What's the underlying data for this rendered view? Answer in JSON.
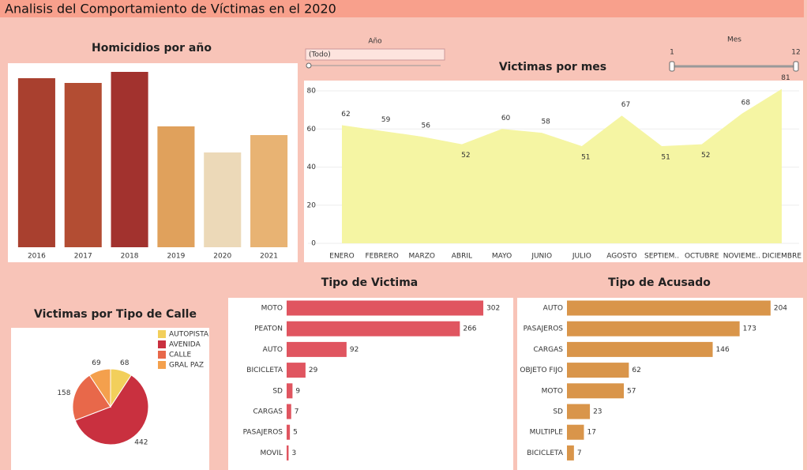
{
  "title": "Analisis del Comportamiento de Víctimas en el 2020",
  "filters": {
    "year": {
      "label": "Año",
      "value": "(Todo)"
    },
    "month": {
      "label": "Mes",
      "min": 1,
      "max": 12
    }
  },
  "chart_data": [
    {
      "type": "bar",
      "title": "Homicidios por año",
      "categories": [
        "2016",
        "2017",
        "2018",
        "2019",
        "2020",
        "2021"
      ],
      "values": [
        214,
        208,
        222,
        153,
        120,
        142
      ],
      "colors": [
        "#a9402f",
        "#b34d33",
        "#a2322e",
        "#e0a15c",
        "#ecd9b8",
        "#e8b373"
      ],
      "ylim": [
        0,
        230
      ]
    },
    {
      "type": "area",
      "title": "Victimas por mes",
      "categories": [
        "ENERO",
        "FEBRERO",
        "MARZO",
        "ABRIL",
        "MAYO",
        "JUNIO",
        "JULIO",
        "AGOSTO",
        "SEPTIEM..",
        "OCTUBRE",
        "NOVIEME..",
        "DICIEMBRE"
      ],
      "values": [
        62,
        59,
        56,
        52,
        60,
        58,
        51,
        67,
        51,
        52,
        68,
        81
      ],
      "color": "#f5f5a3",
      "ylim": [
        0,
        85
      ],
      "yticks": [
        0,
        20,
        40,
        60,
        80
      ],
      "grid": true
    },
    {
      "type": "pie",
      "title": "Victimas por Tipo de Calle",
      "categories": [
        "AUTOPISTA",
        "AVENIDA",
        "CALLE",
        "GRAL PAZ"
      ],
      "values": [
        68,
        442,
        158,
        69
      ],
      "colors": [
        "#f2cf5b",
        "#c9303f",
        "#e8684a",
        "#f4a04d"
      ]
    },
    {
      "type": "hbar",
      "title": "Tipo de Victima",
      "categories": [
        "MOTO",
        "PEATON",
        "AUTO",
        "BICICLETA",
        "SD",
        "CARGAS",
        "PASAJEROS",
        "MOVIL"
      ],
      "values": [
        302,
        266,
        92,
        29,
        9,
        7,
        5,
        3
      ],
      "color": "#e05560",
      "xlim": [
        0,
        348
      ]
    },
    {
      "type": "hbar",
      "title": "Tipo de Acusado",
      "categories": [
        "AUTO",
        "PASAJEROS",
        "CARGAS",
        "OBJETO FIJO",
        "MOTO",
        "SD",
        "MULTIPLE",
        "BICICLETA"
      ],
      "values": [
        204,
        173,
        146,
        62,
        57,
        23,
        17,
        7
      ],
      "color": "#d9954a",
      "xlim": [
        0,
        231
      ]
    }
  ]
}
